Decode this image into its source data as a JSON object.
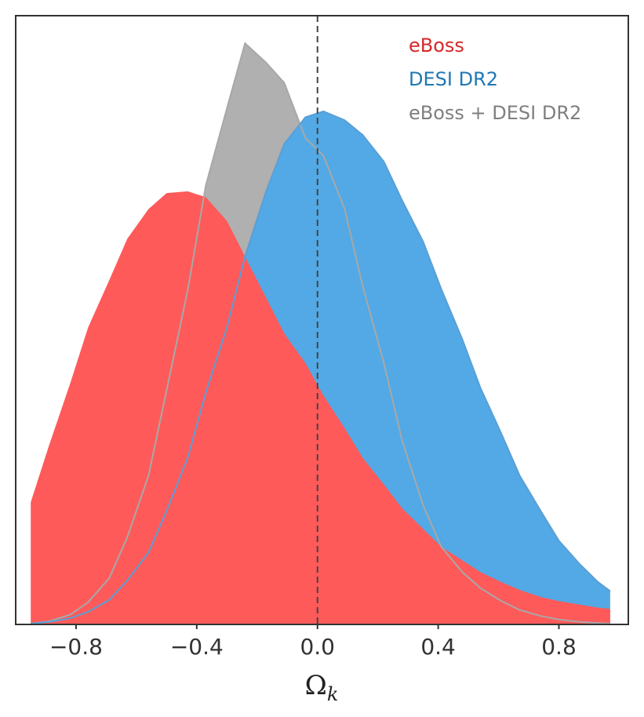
{
  "chart_data": {
    "type": "area",
    "xlabel": "Ω",
    "xlabel_subscript": "k",
    "ylabel": "",
    "xlim": [
      -1.0,
      1.03
    ],
    "ylim": [
      0,
      1.0
    ],
    "x_ticks": [
      -0.8,
      -0.4,
      0.0,
      0.4,
      0.8
    ],
    "x_tick_labels": [
      "−0.8",
      "−0.4",
      "0.0",
      "0.4",
      "0.8"
    ],
    "reference_line_x": 0.0,
    "legend_position": "top-right",
    "grid": false,
    "series": [
      {
        "name": "eBoss + DESI DR2",
        "color": "#b0b0b0",
        "line_color": "#a8a8a8",
        "x": [
          -0.95,
          -0.89,
          -0.82,
          -0.76,
          -0.69,
          -0.63,
          -0.56,
          -0.5,
          -0.43,
          -0.37,
          -0.3,
          -0.24,
          -0.17,
          -0.11,
          -0.04,
          0.02,
          0.09,
          0.15,
          0.22,
          0.28,
          0.35,
          0.41,
          0.48,
          0.54,
          0.61,
          0.67,
          0.74,
          0.8,
          0.87,
          0.93,
          0.97
        ],
        "values": [
          0.0,
          0.004,
          0.015,
          0.036,
          0.077,
          0.146,
          0.25,
          0.394,
          0.563,
          0.74,
          0.87,
          0.98,
          0.947,
          0.913,
          0.82,
          0.79,
          0.7,
          0.57,
          0.44,
          0.31,
          0.2,
          0.13,
          0.087,
          0.06,
          0.038,
          0.023,
          0.013,
          0.007,
          0.003,
          0.001,
          0.0
        ]
      },
      {
        "name": "DESI DR2",
        "color": "#52a9e5",
        "line_color": "#5a9fd6",
        "x": [
          -0.95,
          -0.89,
          -0.82,
          -0.76,
          -0.69,
          -0.63,
          -0.56,
          -0.5,
          -0.43,
          -0.37,
          -0.3,
          -0.24,
          -0.17,
          -0.11,
          -0.04,
          0.02,
          0.09,
          0.15,
          0.22,
          0.28,
          0.35,
          0.41,
          0.48,
          0.54,
          0.61,
          0.67,
          0.74,
          0.8,
          0.87,
          0.93,
          0.97
        ],
        "values": [
          0.0,
          0.003,
          0.009,
          0.02,
          0.04,
          0.073,
          0.12,
          0.19,
          0.28,
          0.39,
          0.5,
          0.62,
          0.73,
          0.81,
          0.855,
          0.865,
          0.85,
          0.825,
          0.78,
          0.715,
          0.645,
          0.565,
          0.48,
          0.398,
          0.32,
          0.25,
          0.19,
          0.14,
          0.1,
          0.07,
          0.055
        ]
      },
      {
        "name": "eBoss",
        "color": "#ff5a5a",
        "x": [
          -0.95,
          -0.89,
          -0.82,
          -0.76,
          -0.69,
          -0.63,
          -0.56,
          -0.5,
          -0.43,
          -0.37,
          -0.3,
          -0.24,
          -0.17,
          -0.11,
          -0.04,
          0.02,
          0.09,
          0.15,
          0.22,
          0.28,
          0.35,
          0.41,
          0.48,
          0.54,
          0.61,
          0.67,
          0.74,
          0.8,
          0.87,
          0.93,
          0.97
        ],
        "values": [
          0.205,
          0.3,
          0.405,
          0.5,
          0.58,
          0.65,
          0.7,
          0.727,
          0.73,
          0.72,
          0.68,
          0.62,
          0.55,
          0.49,
          0.44,
          0.385,
          0.33,
          0.28,
          0.235,
          0.195,
          0.16,
          0.13,
          0.107,
          0.087,
          0.07,
          0.057,
          0.045,
          0.038,
          0.032,
          0.027,
          0.025
        ]
      }
    ],
    "legend": [
      {
        "label": "eBoss",
        "color": "#d62728"
      },
      {
        "label": "DESI DR2",
        "color": "#1f77b4"
      },
      {
        "label": "eBoss + DESI DR2",
        "color": "#7f7f7f"
      }
    ]
  }
}
